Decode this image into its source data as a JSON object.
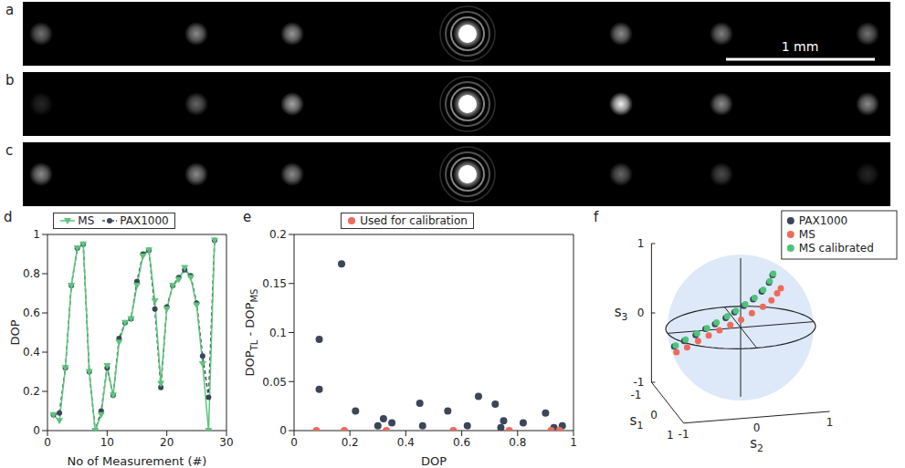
{
  "images": [
    {
      "panel": "a",
      "spot_brightness": [
        0.45,
        0.55,
        0.6,
        0.55,
        0.5,
        0.45
      ],
      "scale_bar": "1 mm"
    },
    {
      "panel": "b",
      "spot_brightness": [
        0.15,
        0.4,
        0.65,
        0.95,
        0.55,
        0.55
      ]
    },
    {
      "panel": "c",
      "spot_brightness": [
        0.55,
        0.55,
        0.55,
        0.4,
        0.3,
        0.15
      ]
    }
  ],
  "chart_data": [
    {
      "panel": "d",
      "type": "line",
      "xlabel": "No of Measurement (#)",
      "ylabel": "DOP",
      "x": [
        1,
        2,
        3,
        4,
        5,
        6,
        7,
        8,
        9,
        10,
        11,
        12,
        13,
        14,
        15,
        16,
        17,
        18,
        19,
        20,
        21,
        22,
        23,
        24,
        25,
        26,
        27,
        28
      ],
      "series": [
        {
          "name": "MS",
          "color": "#5cc47c",
          "marker": "triangle-down",
          "line_style": "solid",
          "values": [
            0.08,
            0.05,
            0.32,
            0.74,
            0.93,
            0.95,
            0.3,
            0.0,
            0.08,
            0.33,
            0.18,
            0.45,
            0.55,
            0.57,
            0.74,
            0.89,
            0.92,
            0.66,
            0.24,
            0.62,
            0.74,
            0.77,
            0.83,
            0.78,
            0.64,
            0.34,
            0.0,
            0.97
          ]
        },
        {
          "name": "PAX1000",
          "color": "#3b4658",
          "marker": "circle",
          "line_style": "dashed",
          "values": [
            0.08,
            0.09,
            0.32,
            0.74,
            0.93,
            0.95,
            0.3,
            0.0,
            0.1,
            0.32,
            0.18,
            0.47,
            0.55,
            0.57,
            0.76,
            0.9,
            0.92,
            0.62,
            0.22,
            0.63,
            0.74,
            0.78,
            0.82,
            0.79,
            0.65,
            0.38,
            0.17,
            0.97
          ]
        }
      ],
      "xlim": [
        0,
        30
      ],
      "xticks": [
        0,
        10,
        20,
        30
      ],
      "ylim": [
        0,
        1
      ],
      "yticks": [
        0,
        0.2,
        0.4,
        0.6,
        0.8,
        1
      ],
      "legend": "top"
    },
    {
      "panel": "e",
      "type": "scatter",
      "xlabel": "DOP",
      "ylabel": [
        {
          "text": "DOP"
        },
        {
          "text": "TL",
          "sub": true
        },
        {
          "text": " - DOP"
        },
        {
          "text": "MS",
          "sub": true
        }
      ],
      "series": [
        {
          "color": "#3b4658",
          "x": [
            0.09,
            0.09,
            0.17,
            0.22,
            0.3,
            0.32,
            0.35,
            0.45,
            0.46,
            0.55,
            0.62,
            0.66,
            0.72,
            0.74,
            0.75,
            0.82,
            0.9,
            0.93,
            0.96
          ],
          "values": [
            0.093,
            0.042,
            0.17,
            0.02,
            0.005,
            0.012,
            0.008,
            0.028,
            0.005,
            0.02,
            0.005,
            0.035,
            0.027,
            0.003,
            0.01,
            0.008,
            0.018,
            0.003,
            0.005
          ]
        },
        {
          "name": "Used for calibration",
          "color": "#ee6a5a",
          "x": [
            0.08,
            0.18,
            0.33,
            0.57,
            0.77,
            0.92,
            0.95
          ],
          "values": [
            0,
            0,
            0,
            0,
            0,
            0,
            0
          ]
        }
      ],
      "xlim": [
        0,
        1
      ],
      "xticks": [
        0,
        0.2,
        0.4,
        0.6,
        0.8,
        1
      ],
      "ylim": [
        0,
        0.2
      ],
      "yticks": [
        0,
        0.05,
        0.1,
        0.15,
        0.2
      ],
      "legend": "top"
    },
    {
      "panel": "f",
      "type": "scatter3d",
      "xlabel": "s1",
      "ylabel": "s2",
      "zlabel": "s3",
      "xlim": [
        -1,
        1
      ],
      "xticks": [
        -1,
        0,
        1
      ],
      "ylim": [
        -1,
        1
      ],
      "yticks": [
        -1,
        0,
        1
      ],
      "zlim": [
        -1,
        1
      ],
      "zticks": [
        -1,
        0,
        1
      ],
      "legend": "top-right",
      "series": [
        {
          "name": "PAX1000",
          "color": "#3b4658",
          "x": [
            0.05,
            0.03,
            0.02,
            0.0,
            0.0,
            -0.02,
            -0.02,
            -0.03,
            -0.04,
            -0.05,
            -0.05,
            -0.06
          ],
          "y": [
            -0.92,
            -0.78,
            -0.62,
            -0.48,
            -0.35,
            -0.2,
            -0.08,
            0.05,
            0.18,
            0.3,
            0.4,
            0.45
          ],
          "z": [
            -0.18,
            -0.12,
            -0.05,
            0.02,
            0.08,
            0.15,
            0.22,
            0.3,
            0.38,
            0.48,
            0.6,
            0.7
          ]
        },
        {
          "name": "MS",
          "color": "#ee6a5a",
          "x": [
            0.1,
            0.08,
            0.08,
            0.06,
            0.05,
            0.04,
            0.03,
            0.02,
            0.02,
            0.01,
            0.0,
            0.0
          ],
          "y": [
            -0.9,
            -0.75,
            -0.6,
            -0.45,
            -0.3,
            -0.15,
            0.0,
            0.15,
            0.3,
            0.42,
            0.5,
            0.55
          ],
          "z": [
            -0.25,
            -0.2,
            -0.12,
            -0.06,
            0.0,
            0.06,
            0.12,
            0.2,
            0.28,
            0.36,
            0.45,
            0.52
          ]
        },
        {
          "name": "MS calibrated",
          "color": "#4cc477",
          "x": [
            0.05,
            0.03,
            0.02,
            0.0,
            0.0,
            -0.02,
            -0.02,
            -0.03,
            -0.04,
            -0.05,
            -0.05,
            -0.06
          ],
          "y": [
            -0.9,
            -0.76,
            -0.6,
            -0.46,
            -0.33,
            -0.18,
            -0.06,
            0.07,
            0.2,
            0.32,
            0.41,
            0.46
          ],
          "z": [
            -0.17,
            -0.1,
            -0.03,
            0.03,
            0.1,
            0.17,
            0.24,
            0.32,
            0.4,
            0.5,
            0.62,
            0.72
          ]
        }
      ]
    }
  ]
}
